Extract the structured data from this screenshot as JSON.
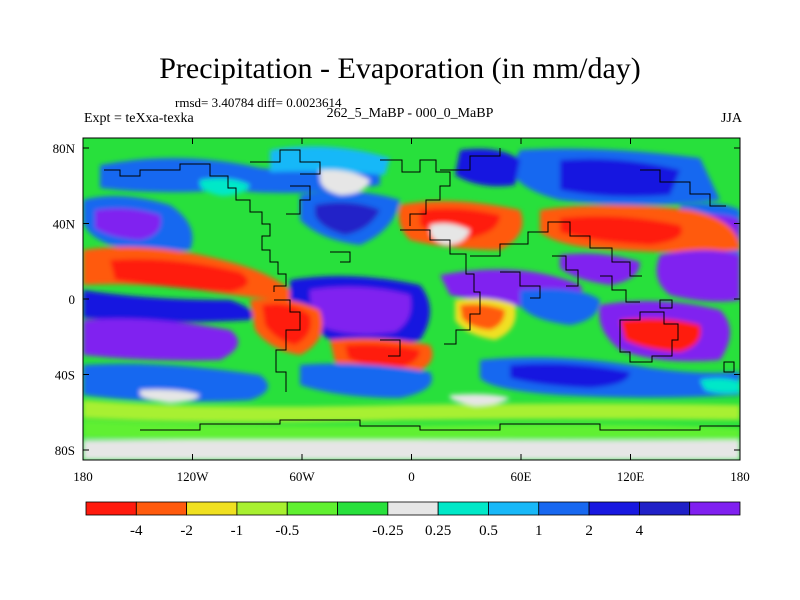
{
  "figure": {
    "title": "Precipitation - Evaporation (in mm/day)",
    "stats": "rmsd= 3.40784 diff= 0.0023614",
    "experiment": "Expt = teXxa-texka",
    "comparison": "262_5_MaBP - 000_0_MaBP",
    "season": "JJA"
  },
  "axes": {
    "x_ticks": [
      "180",
      "120W",
      "60W",
      "0",
      "60E",
      "120E",
      "180"
    ],
    "y_ticks": [
      "80N",
      "40N",
      "0",
      "40S",
      "80S"
    ]
  },
  "colorbar": {
    "colors": [
      "#ff1a0d",
      "#ff5a0d",
      "#f0e020",
      "#a8f030",
      "#60f030",
      "#28e03c",
      "#e6e6e6",
      "#00e8c8",
      "#18b8f8",
      "#1868f0",
      "#1818e0",
      "#2020c8",
      "#8020f0"
    ],
    "labels": [
      "-4",
      "-2",
      "-1",
      "-0.5",
      "-0.25",
      "0.25",
      "0.5",
      "1",
      "2",
      "4"
    ]
  },
  "map": {
    "background_color": "#28e03c",
    "land_outline_color": "#000000"
  }
}
